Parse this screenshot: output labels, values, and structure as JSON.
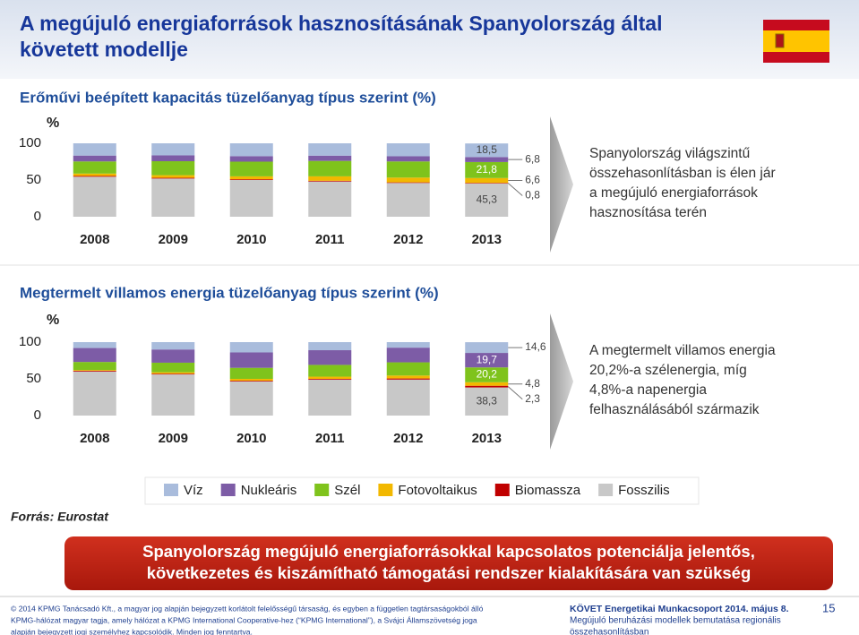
{
  "header": {
    "title": [
      "A megújuló energiaforrások hasznosításának Spanyolország által",
      "követett modellje"
    ]
  },
  "chart_data": [
    {
      "type": "stacked_bar",
      "title": "Erőművi beépített kapacitás tüzelőanyag típus szerint (%)",
      "y_label": "%",
      "categories": [
        "2008",
        "2009",
        "2010",
        "2011",
        "2012",
        "2013"
      ],
      "ylim": [
        0,
        100
      ],
      "yticks": [
        0,
        50,
        100
      ],
      "grid": false,
      "series": [
        {
          "name": "Víz",
          "color": "#a9bcdc",
          "values": [
            16.7,
            16.4,
            17.5,
            16.8,
            17.7,
            18.5
          ],
          "value_labels": [
            null,
            null,
            null,
            null,
            null,
            "18,5"
          ]
        },
        {
          "name": "Nukleáris",
          "color": "#7d5ca6",
          "values": [
            8,
            8,
            7.5,
            7.2,
            7,
            6.8
          ],
          "value_labels": [
            null,
            null,
            null,
            null,
            null,
            "6,8"
          ]
        },
        {
          "name": "Szél",
          "color": "#7fc31c",
          "values": [
            16.5,
            19,
            20,
            21,
            22,
            21.8
          ],
          "value_labels": [
            null,
            null,
            null,
            null,
            null,
            "21,8"
          ]
        },
        {
          "name": "Fotovoltaikus",
          "color": "#f2b800",
          "values": [
            3.3,
            3.6,
            4,
            6,
            6.5,
            6.6
          ],
          "value_labels": [
            null,
            null,
            null,
            null,
            null,
            "6,6"
          ]
        },
        {
          "name": "Biomassza",
          "color": "#c00000",
          "values": [
            1,
            1,
            1,
            1,
            0.8,
            0.8
          ],
          "value_labels": [
            null,
            null,
            null,
            null,
            null,
            "0,8"
          ]
        },
        {
          "name": "Fosszilis",
          "color": "#c8c8c8",
          "values": [
            54.5,
            52,
            50,
            48,
            46,
            45.3
          ],
          "value_labels": [
            null,
            null,
            null,
            null,
            null,
            "45,3"
          ]
        }
      ],
      "annotation": [
        "Spanyolország világszintű",
        "összehasonlításban is élen jár",
        "a megújuló energiaforrások",
        "hasznosítása terén"
      ]
    },
    {
      "type": "stacked_bar",
      "title": "Megtermelt villamos energia tüzelőanyag típus szerint (%)",
      "y_label": "%",
      "categories": [
        "2008",
        "2009",
        "2010",
        "2011",
        "2012",
        "2013"
      ],
      "ylim": [
        0,
        100
      ],
      "yticks": [
        0,
        50,
        100
      ],
      "grid": false,
      "series": [
        {
          "color": "#a9bcdc",
          "values": [
            8,
            10,
            14,
            11,
            7.5,
            14.6
          ],
          "value_labels": [
            null,
            null,
            null,
            null,
            null,
            "14,6"
          ]
        },
        {
          "color": "#7d5ca6",
          "values": [
            19,
            18,
            21,
            20,
            20,
            19.7
          ],
          "value_labels": [
            null,
            null,
            null,
            null,
            null,
            "19,7"
          ]
        },
        {
          "color": "#7fc31c",
          "values": [
            11,
            13,
            15,
            16,
            18,
            20.2
          ],
          "value_labels": [
            null,
            null,
            null,
            null,
            null,
            "20,2"
          ]
        },
        {
          "color": "#f2b800",
          "values": [
            1,
            2,
            2.5,
            3,
            4,
            4.8
          ],
          "value_labels": [
            null,
            null,
            null,
            null,
            null,
            "4,8"
          ]
        },
        {
          "color": "#c00000",
          "values": [
            1,
            1,
            1,
            1,
            1.5,
            2.3
          ],
          "value_labels": [
            null,
            null,
            null,
            null,
            null,
            "2,3"
          ]
        },
        {
          "color": "#c8c8c8",
          "values": [
            60,
            56,
            46.5,
            49,
            49,
            38.3
          ],
          "value_labels": [
            null,
            null,
            null,
            null,
            null,
            "38,3"
          ]
        }
      ],
      "annotation": [
        "A megtermelt villamos energia",
        "20,2%-a szélenergia, míg",
        "4,8%-a napenergia",
        "felhasználásából származik"
      ]
    }
  ],
  "source": "Forrás: Eurostat",
  "banner": [
    "Spanyolország megújuló energiaforrásokkal kapcsolatos potenciálja jelentős,",
    "következetes és kiszámítható támogatási rendszer kialakítására  van szükség"
  ],
  "footer": {
    "left": [
      "© 2014 KPMG Tanácsadó Kft., a magyar jog alapján bejegyzett korlátolt felelősségű társaság, és egyben a független tagtársaságokból álló",
      "KPMG-hálózat magyar tagja, amely hálózat a KPMG International Cooperative-hez (“KPMG International”), a Svájci Államszövetség joga",
      "alapján bejegyzett jogi személyhez kapcsolódik. Minden jog fenntartva."
    ],
    "right": [
      "KÖVET Energetikai Munkacsoport 2014. május 8.",
      "Megújuló beruházási modellek  bemutatása regionális",
      "összehasonlításban"
    ],
    "page": "15"
  }
}
